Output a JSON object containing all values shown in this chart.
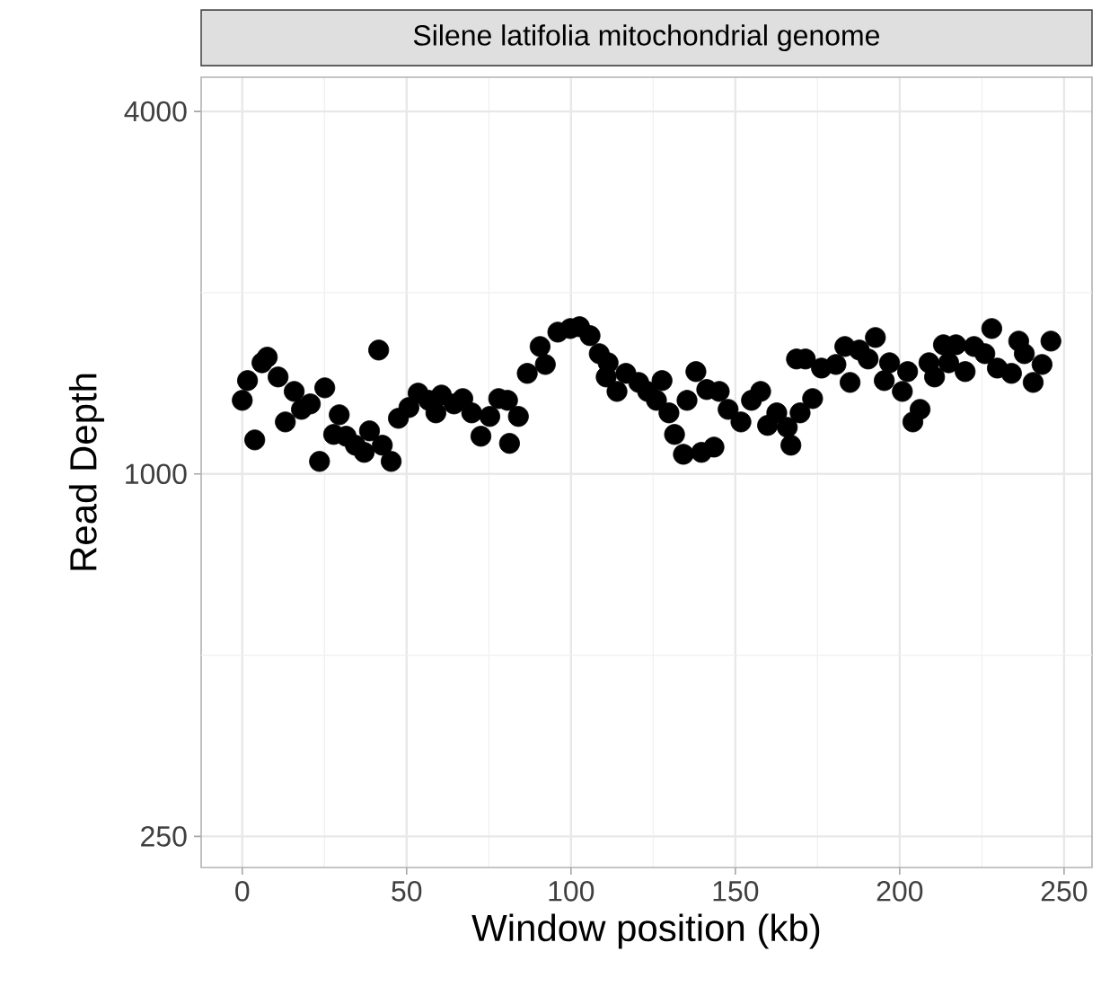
{
  "chart_data": {
    "type": "scatter",
    "title": "Silene latifolia mitochondrial genome",
    "xlabel": "Window position (kb)",
    "ylabel": "Read Depth",
    "x": [
      0,
      1.6,
      3.8,
      6.0,
      7.6,
      10.9,
      13.1,
      15.8,
      18.0,
      20.7,
      23.5,
      25.1,
      27.8,
      29.5,
      31.6,
      34.4,
      37.1,
      38.7,
      41.5,
      42.6,
      45.3,
      47.5,
      50.7,
      53.5,
      56.7,
      58.9,
      60.6,
      64.4,
      67.1,
      69.8,
      72.6,
      75.3,
      78.0,
      80.7,
      81.3,
      84.0,
      86.7,
      90.6,
      92.2,
      96.0,
      99.8,
      102.6,
      105.8,
      108.6,
      111.3,
      110.7,
      114.0,
      116.7,
      120.6,
      123.3,
      127.7,
      126.0,
      129.8,
      131.5,
      134.2,
      138.0,
      135.3,
      139.7,
      143.5,
      141.3,
      145.1,
      147.8,
      151.7,
      154.9,
      157.7,
      159.8,
      162.6,
      165.8,
      166.9,
      168.6,
      169.7,
      173.5,
      171.3,
      176.2,
      180.6,
      183.3,
      184.9,
      187.7,
      192.6,
      190.4,
      195.3,
      196.9,
      200.8,
      202.4,
      206.2,
      204.0,
      208.9,
      210.6,
      213.3,
      214.9,
      217.1,
      219.9,
      222.6,
      225.9,
      228.0,
      229.7,
      234.0,
      236.2,
      237.9,
      240.6,
      243.3,
      246.0
    ],
    "values": [
      1325,
      1429,
      1139,
      1530,
      1563,
      1449,
      1220,
      1371,
      1280,
      1307,
      1049,
      1390,
      1163,
      1254,
      1155,
      1116,
      1086,
      1179,
      1606,
      1116,
      1049,
      1237,
      1289,
      1362,
      1325,
      1263,
      1352,
      1307,
      1334,
      1263,
      1155,
      1246,
      1334,
      1325,
      1124,
      1246,
      1469,
      1628,
      1520,
      1720,
      1744,
      1756,
      1697,
      1584,
      1530,
      1449,
      1371,
      1469,
      1419,
      1371,
      1429,
      1325,
      1263,
      1163,
      1078,
      1479,
      1325,
      1086,
      1108,
      1381,
      1371,
      1280,
      1220,
      1325,
      1371,
      1204,
      1263,
      1195,
      1116,
      1552,
      1263,
      1334,
      1552,
      1499,
      1520,
      1628,
      1419,
      1606,
      1685,
      1552,
      1429,
      1530,
      1371,
      1479,
      1280,
      1220,
      1530,
      1449,
      1639,
      1530,
      1639,
      1479,
      1628,
      1584,
      1744,
      1499,
      1469,
      1662,
      1584,
      1419,
      1520,
      1662
    ],
    "color": "#000000",
    "marker": "circle",
    "log": "y",
    "grid": true,
    "xlim": [
      -12.5,
      258.5
    ],
    "xticks": [
      0,
      50,
      100,
      150,
      200,
      250
    ],
    "ylim": [
      222,
      4560
    ],
    "yticks": [
      250,
      1000,
      4000
    ]
  }
}
